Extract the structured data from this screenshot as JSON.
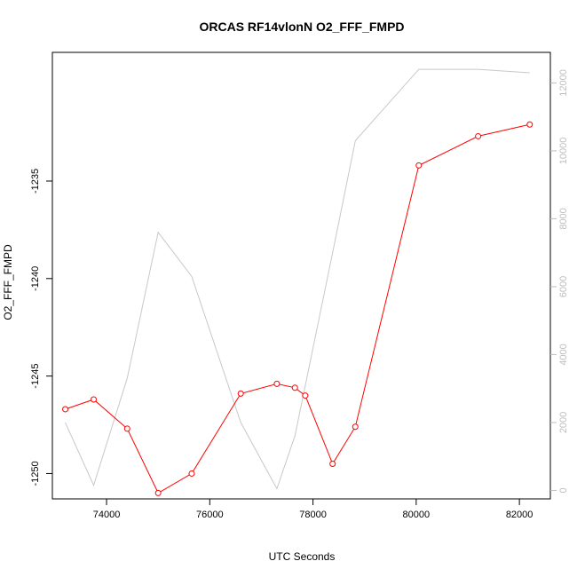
{
  "chart_data": {
    "type": "line",
    "title": "ORCAS RF14vlonN O2_FFF_FMPD",
    "xlabel": "UTC Seconds",
    "ylabel": "O2_FFF_FMPD",
    "ylabel_right": "",
    "xlim": [
      72950,
      82600
    ],
    "ylim": [
      -1251.3,
      -1228.4
    ],
    "y2lim": [
      -250,
      12900
    ],
    "x_ticks": [
      74000,
      76000,
      78000,
      80000,
      82000
    ],
    "y_ticks": [
      -1235,
      -1240,
      -1245,
      -1250
    ],
    "y2_ticks": [
      0,
      2000,
      4000,
      6000,
      8000,
      10000,
      12000
    ],
    "grid": false,
    "legend": "none",
    "series": [
      {
        "role": "primary",
        "axis": "left",
        "color": "#ff0000",
        "markers": "open-circle",
        "x": [
          73200,
          73750,
          74400,
          75000,
          75650,
          76600,
          77300,
          77650,
          77850,
          78380,
          78820,
          80050,
          81200,
          82200
        ],
        "y": [
          -1246.7,
          -1246.2,
          -1247.7,
          -1251.0,
          -1250.0,
          -1245.9,
          -1245.4,
          -1245.6,
          -1246.0,
          -1249.5,
          -1247.6,
          -1234.2,
          -1232.7,
          -1232.1
        ]
      },
      {
        "role": "secondary",
        "axis": "right",
        "color": "#c8c8c8",
        "markers": "none",
        "x": [
          73200,
          73750,
          74400,
          75000,
          75650,
          76600,
          77300,
          77650,
          78380,
          78820,
          80050,
          81200,
          82200
        ],
        "y": [
          2000,
          150,
          3300,
          7600,
          6300,
          2000,
          50,
          1600,
          7000,
          10300,
          12400,
          12400,
          12300
        ]
      }
    ]
  }
}
